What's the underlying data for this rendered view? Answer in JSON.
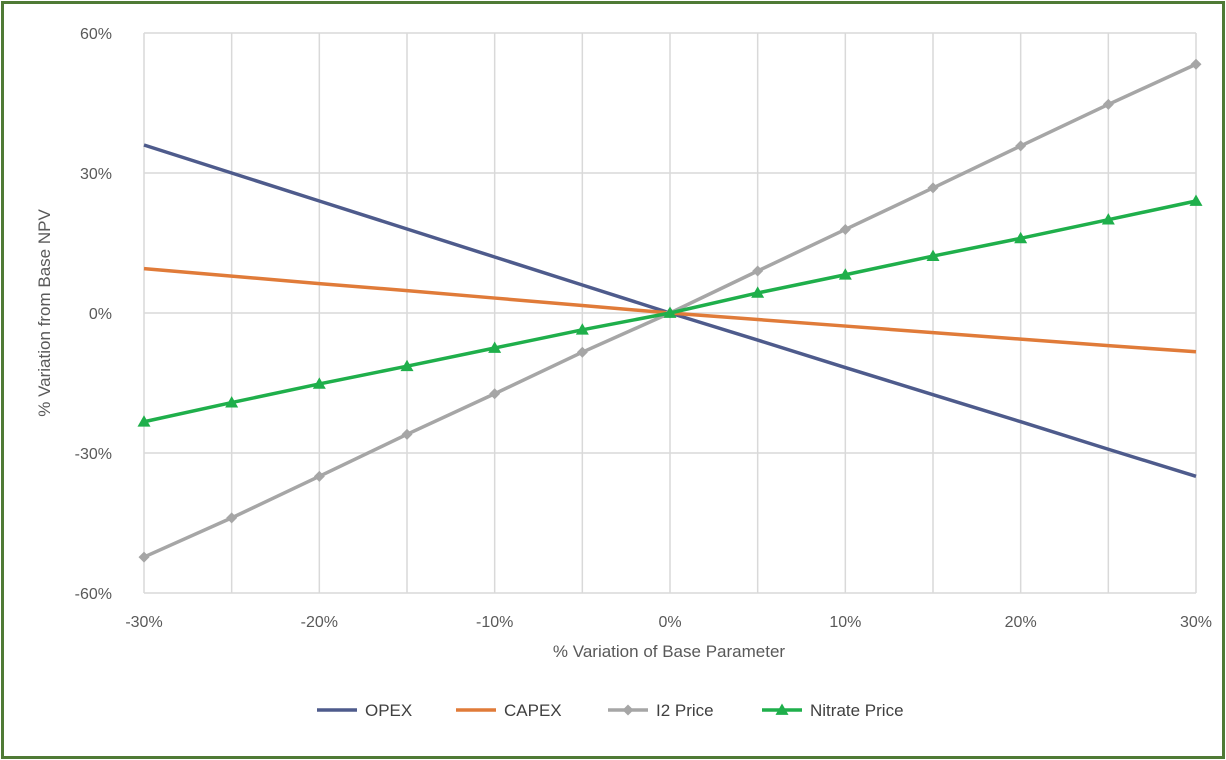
{
  "chart_data": {
    "type": "line",
    "xlabel": "% Variation of Base Parameter",
    "ylabel": "% Variation from Base NPV",
    "x": [
      -30,
      -25,
      -20,
      -15,
      -10,
      -5,
      0,
      5,
      10,
      15,
      20,
      25,
      30
    ],
    "x_tick_values": [
      -30,
      -20,
      -10,
      0,
      10,
      20,
      30
    ],
    "x_tick_labels": [
      "-30%",
      "-20%",
      "-10%",
      "0%",
      "10%",
      "20%",
      "30%"
    ],
    "xlim": [
      -30,
      30
    ],
    "y_tick_values": [
      60,
      30,
      0,
      -30,
      -60
    ],
    "y_tick_labels": [
      "60%",
      "30%",
      "0%",
      "-30%",
      "-60%"
    ],
    "ylim": [
      -60,
      60
    ],
    "grid": true,
    "legend_position": "bottom",
    "series": [
      {
        "name": "OPEX",
        "color": "#4e5b8c",
        "marker": "none",
        "values": [
          36,
          30,
          24,
          18,
          12,
          6,
          0,
          -5.8,
          -11.7,
          -17.5,
          -23.3,
          -29.2,
          -35
        ]
      },
      {
        "name": "CAPEX",
        "color": "#e07b39",
        "marker": "none",
        "values": [
          9.5,
          7.9,
          6.3,
          4.8,
          3.2,
          1.6,
          0,
          -1.4,
          -2.8,
          -4.2,
          -5.6,
          -7,
          -8.3
        ]
      },
      {
        "name": "I2 Price",
        "color": "#a6a6a6",
        "marker": "diamond",
        "values": [
          -52.3,
          -43.9,
          -35,
          -26,
          -17.3,
          -8.4,
          0,
          9,
          17.9,
          26.8,
          35.8,
          44.7,
          53.3
        ]
      },
      {
        "name": "Nitrate Price",
        "color": "#1faf4b",
        "marker": "triangle",
        "values": [
          -23.3,
          -19.2,
          -15.2,
          -11.4,
          -7.5,
          -3.6,
          0,
          4.3,
          8.2,
          12.2,
          16,
          20,
          24
        ]
      }
    ]
  }
}
